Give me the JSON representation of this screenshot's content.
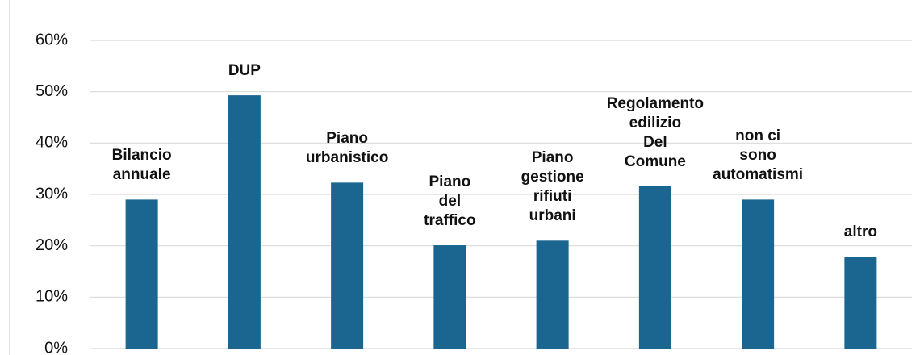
{
  "chart_data": {
    "type": "bar",
    "categories": [
      "Bilancio\nannuale",
      "DUP",
      "Piano\nurbanistico",
      "Piano\ndel\ntraffico",
      "Piano\ngestione\nrifiuti\nurbani",
      "Regolamento\nedilizio\nDel\nComune",
      "non ci\nsono\nautomatismi",
      "altro"
    ],
    "values": [
      29.0,
      49.3,
      32.3,
      20.1,
      21.0,
      31.6,
      29.0,
      17.9
    ],
    "color": "#1a6690",
    "ylim": [
      0,
      60
    ],
    "yticks": [
      {
        "value": 0,
        "label": "0%"
      },
      {
        "value": 10,
        "label": "10%"
      },
      {
        "value": 20,
        "label": "20%"
      },
      {
        "value": 30,
        "label": "30%"
      },
      {
        "value": 40,
        "label": "40%"
      },
      {
        "value": 50,
        "label": "50%"
      },
      {
        "value": 60,
        "label": "60%"
      }
    ],
    "grid": true
  }
}
